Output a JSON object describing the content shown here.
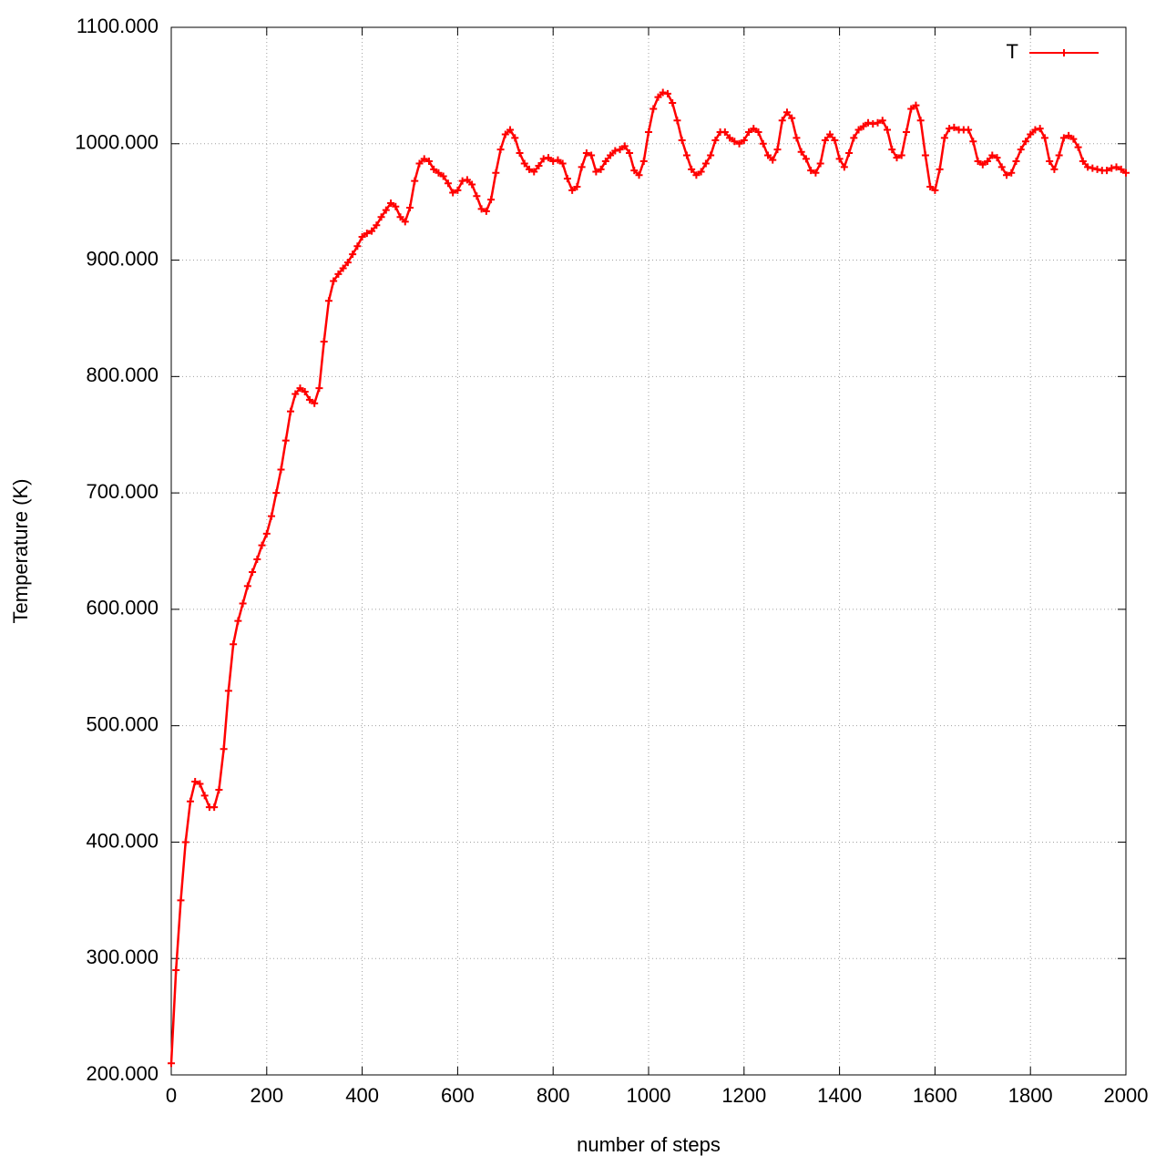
{
  "chart_data": {
    "type": "line",
    "xlabel": "number of steps",
    "ylabel": "Temperature (K)",
    "legend": "top right",
    "grid": true,
    "xlim": [
      0,
      2000
    ],
    "ylim": [
      200,
      1100
    ],
    "xticks": [
      0,
      200,
      400,
      600,
      800,
      1000,
      1200,
      1400,
      1600,
      1800,
      2000
    ],
    "yticks": [
      {
        "value": 200,
        "label": "200.000"
      },
      {
        "value": 300,
        "label": "300.000"
      },
      {
        "value": 400,
        "label": "400.000"
      },
      {
        "value": 500,
        "label": "500.000"
      },
      {
        "value": 600,
        "label": "600.000"
      },
      {
        "value": 700,
        "label": "700.000"
      },
      {
        "value": 800,
        "label": "800.000"
      },
      {
        "value": 900,
        "label": "900.000"
      },
      {
        "value": 1000,
        "label": "1000.000"
      },
      {
        "value": 1100,
        "label": "1100.000"
      }
    ],
    "x": [
      0,
      10,
      20,
      30,
      40,
      50,
      60,
      70,
      80,
      90,
      100,
      110,
      120,
      130,
      140,
      150,
      160,
      170,
      180,
      190,
      200,
      210,
      220,
      230,
      240,
      250,
      260,
      270,
      280,
      290,
      300,
      310,
      320,
      330,
      340,
      350,
      360,
      370,
      380,
      390,
      400,
      410,
      420,
      430,
      440,
      450,
      460,
      470,
      480,
      490,
      500,
      510,
      520,
      530,
      540,
      550,
      560,
      570,
      580,
      590,
      600,
      610,
      620,
      630,
      640,
      650,
      660,
      670,
      680,
      690,
      700,
      710,
      720,
      730,
      740,
      750,
      760,
      770,
      780,
      790,
      800,
      810,
      820,
      830,
      840,
      850,
      860,
      870,
      880,
      890,
      900,
      910,
      920,
      930,
      940,
      950,
      960,
      970,
      980,
      990,
      1000,
      1010,
      1020,
      1030,
      1040,
      1050,
      1060,
      1070,
      1080,
      1090,
      1100,
      1110,
      1120,
      1130,
      1140,
      1150,
      1160,
      1170,
      1180,
      1190,
      1200,
      1210,
      1220,
      1230,
      1240,
      1250,
      1260,
      1270,
      1280,
      1290,
      1300,
      1310,
      1320,
      1330,
      1340,
      1350,
      1360,
      1370,
      1380,
      1390,
      1400,
      1410,
      1420,
      1430,
      1440,
      1450,
      1460,
      1470,
      1480,
      1490,
      1500,
      1510,
      1520,
      1530,
      1540,
      1550,
      1560,
      1570,
      1580,
      1590,
      1600,
      1610,
      1620,
      1630,
      1640,
      1650,
      1660,
      1670,
      1680,
      1690,
      1700,
      1710,
      1720,
      1730,
      1740,
      1750,
      1760,
      1770,
      1780,
      1790,
      1800,
      1810,
      1820,
      1830,
      1840,
      1850,
      1860,
      1870,
      1880,
      1890,
      1900,
      1910,
      1920,
      1930,
      1940,
      1950,
      1960,
      1970,
      1980,
      1990,
      2000
    ],
    "series": [
      {
        "name": "T",
        "color": "#ff0000",
        "values": [
          210,
          290,
          350,
          400,
          435,
          452,
          450,
          440,
          430,
          430,
          445,
          480,
          530,
          570,
          590,
          605,
          620,
          632,
          643,
          655,
          665,
          680,
          700,
          720,
          745,
          770,
          785,
          790,
          787,
          780,
          777,
          790,
          830,
          865,
          882,
          888,
          893,
          898,
          905,
          912,
          920,
          923,
          925,
          930,
          937,
          943,
          949,
          946,
          937,
          933,
          945,
          968,
          983,
          987,
          985,
          978,
          975,
          972,
          966,
          958,
          960,
          968,
          969,
          965,
          955,
          944,
          942,
          952,
          975,
          995,
          1008,
          1012,
          1005,
          992,
          983,
          978,
          976,
          981,
          987,
          988,
          985,
          986,
          983,
          970,
          960,
          963,
          980,
          992,
          990,
          976,
          978,
          985,
          990,
          994,
          995,
          998,
          992,
          977,
          973,
          985,
          1010,
          1030,
          1040,
          1044,
          1043,
          1035,
          1020,
          1003,
          990,
          978,
          973,
          976,
          983,
          990,
          1003,
          1010,
          1010,
          1005,
          1002,
          1000,
          1003,
          1010,
          1013,
          1010,
          1000,
          990,
          986,
          995,
          1020,
          1027,
          1022,
          1005,
          993,
          987,
          977,
          975,
          983,
          1003,
          1008,
          1003,
          987,
          980,
          992,
          1005,
          1012,
          1015,
          1018,
          1017,
          1018,
          1020,
          1012,
          995,
          988,
          990,
          1010,
          1030,
          1033,
          1020,
          990,
          963,
          960,
          978,
          1005,
          1013,
          1014,
          1012,
          1012,
          1012,
          1002,
          985,
          982,
          985,
          990,
          988,
          980,
          973,
          975,
          985,
          995,
          1002,
          1008,
          1012,
          1013,
          1005,
          985,
          978,
          990,
          1005,
          1007,
          1004,
          997,
          985,
          980,
          979,
          978,
          977,
          977,
          979,
          980,
          978,
          975
        ]
      }
    ]
  }
}
